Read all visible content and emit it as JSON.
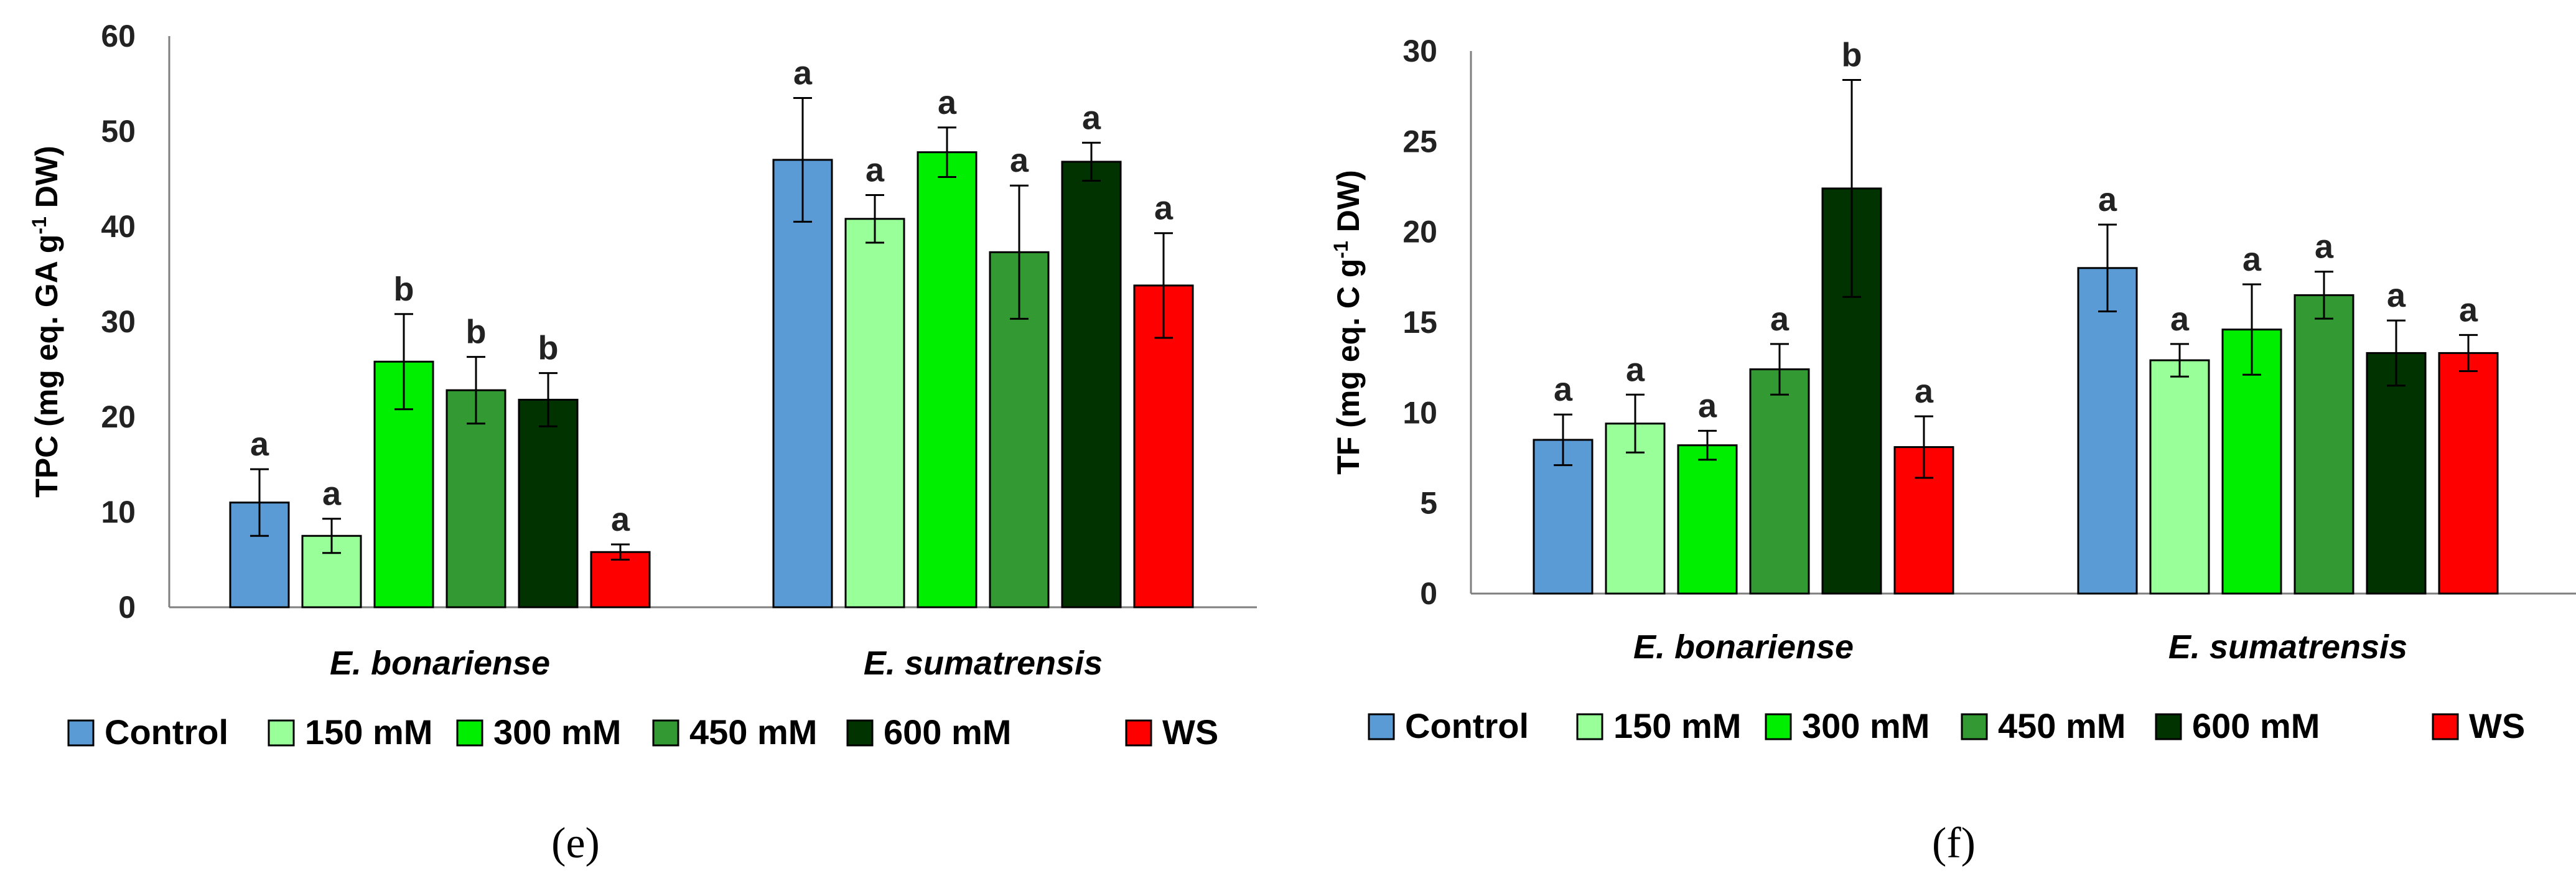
{
  "chart_data": [
    {
      "type": "bar",
      "panel_label": "(e)",
      "ylabel_main": "TPC (mg eq. GA g",
      "ylabel_sup": "-1",
      "ylabel_tail": " DW)",
      "ylim": [
        0,
        60
      ],
      "yticks": [
        "0",
        "10",
        "20",
        "30",
        "40",
        "50",
        "60"
      ],
      "categories": [
        "E. bonariense",
        "E. sumatrensis"
      ],
      "series": [
        {
          "name": "Control",
          "color": "#5b9bd5",
          "values": [
            11.0,
            47.0
          ],
          "errors": [
            3.5,
            6.5
          ],
          "letters": [
            "a",
            "a"
          ]
        },
        {
          "name": "150 mM",
          "color": "#99ff99",
          "values": [
            7.5,
            40.8
          ],
          "errors": [
            1.8,
            2.5
          ],
          "letters": [
            "a",
            "a"
          ]
        },
        {
          "name": "300 mM",
          "color": "#00ee00",
          "values": [
            25.8,
            47.8
          ],
          "errors": [
            5.0,
            2.6
          ],
          "letters": [
            "b",
            "a"
          ]
        },
        {
          "name": "450 mM",
          "color": "#339933",
          "values": [
            22.8,
            37.3
          ],
          "errors": [
            3.5,
            7.0
          ],
          "letters": [
            "b",
            "a"
          ]
        },
        {
          "name": "600 mM",
          "color": "#003300",
          "values": [
            21.8,
            46.8
          ],
          "errors": [
            2.8,
            2.0
          ],
          "letters": [
            "b",
            "a"
          ]
        },
        {
          "name": "WS",
          "color": "#ff0000",
          "values": [
            5.8,
            33.8
          ],
          "errors": [
            0.8,
            5.5
          ],
          "letters": [
            "a",
            "a"
          ]
        }
      ]
    },
    {
      "type": "bar",
      "panel_label": "(f)",
      "ylabel_main": "TF (mg eq. C g",
      "ylabel_sup": "-1",
      "ylabel_tail": " DW)",
      "ylim": [
        0,
        30
      ],
      "yticks": [
        "0",
        "5",
        "10",
        "15",
        "20",
        "25",
        "30"
      ],
      "categories": [
        "E. bonariense",
        "E. sumatrensis"
      ],
      "series": [
        {
          "name": "Control",
          "color": "#5b9bd5",
          "values": [
            8.5,
            18.0
          ],
          "errors": [
            1.4,
            2.4
          ],
          "letters": [
            "a",
            "a"
          ]
        },
        {
          "name": "150 mM",
          "color": "#99ff99",
          "values": [
            9.4,
            12.9
          ],
          "errors": [
            1.6,
            0.9
          ],
          "letters": [
            "a",
            "a"
          ]
        },
        {
          "name": "300 mM",
          "color": "#00ee00",
          "values": [
            8.2,
            14.6
          ],
          "errors": [
            0.8,
            2.5
          ],
          "letters": [
            "a",
            "a"
          ]
        },
        {
          "name": "450 mM",
          "color": "#339933",
          "values": [
            12.4,
            16.5
          ],
          "errors": [
            1.4,
            1.3
          ],
          "letters": [
            "a",
            "a"
          ]
        },
        {
          "name": "600 mM",
          "color": "#003300",
          "values": [
            22.4,
            13.3
          ],
          "errors": [
            6.0,
            1.8
          ],
          "letters": [
            "b",
            "a"
          ]
        },
        {
          "name": "WS",
          "color": "#ff0000",
          "values": [
            8.1,
            13.3
          ],
          "errors": [
            1.7,
            1.0
          ],
          "letters": [
            "a",
            "a"
          ]
        }
      ]
    }
  ]
}
